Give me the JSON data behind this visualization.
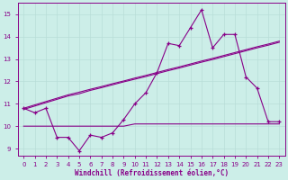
{
  "xlabel": "Windchill (Refroidissement éolien,°C)",
  "background_color": "#cceee8",
  "grid_color": "#b8ddd8",
  "line_color": "#880088",
  "x_values": [
    0,
    1,
    2,
    3,
    4,
    5,
    6,
    7,
    8,
    9,
    10,
    11,
    12,
    13,
    14,
    15,
    16,
    17,
    18,
    19,
    20,
    21,
    22,
    23
  ],
  "temp_line": [
    10.8,
    10.6,
    10.8,
    9.5,
    9.5,
    8.9,
    9.6,
    9.5,
    9.7,
    10.3,
    11.0,
    11.5,
    12.4,
    13.7,
    13.6,
    14.4,
    15.2,
    13.5,
    14.1,
    14.1,
    12.2,
    11.7,
    10.2,
    10.2
  ],
  "line1": [
    10.75,
    10.9,
    11.05,
    11.2,
    11.35,
    11.45,
    11.6,
    11.72,
    11.85,
    11.98,
    12.1,
    12.22,
    12.35,
    12.48,
    12.6,
    12.73,
    12.86,
    12.98,
    13.11,
    13.24,
    13.37,
    13.5,
    13.62,
    13.75
  ],
  "line2": [
    10.8,
    10.95,
    11.1,
    11.25,
    11.4,
    11.52,
    11.65,
    11.77,
    11.9,
    12.02,
    12.15,
    12.27,
    12.4,
    12.53,
    12.65,
    12.78,
    12.91,
    13.03,
    13.16,
    13.29,
    13.42,
    13.55,
    13.67,
    13.8
  ],
  "line3_flat": [
    10.0,
    10.0,
    10.0,
    10.0,
    10.0,
    10.0,
    10.0,
    10.0,
    10.0,
    10.0,
    10.1,
    10.1,
    10.1,
    10.1,
    10.1,
    10.1,
    10.1,
    10.1,
    10.1,
    10.1,
    10.1,
    10.1,
    10.1,
    10.1
  ],
  "ylim": [
    8.7,
    15.5
  ],
  "xlim": [
    -0.5,
    23.5
  ],
  "yticks": [
    9,
    10,
    11,
    12,
    13,
    14,
    15
  ],
  "figsize": [
    3.2,
    2.0
  ],
  "dpi": 100
}
